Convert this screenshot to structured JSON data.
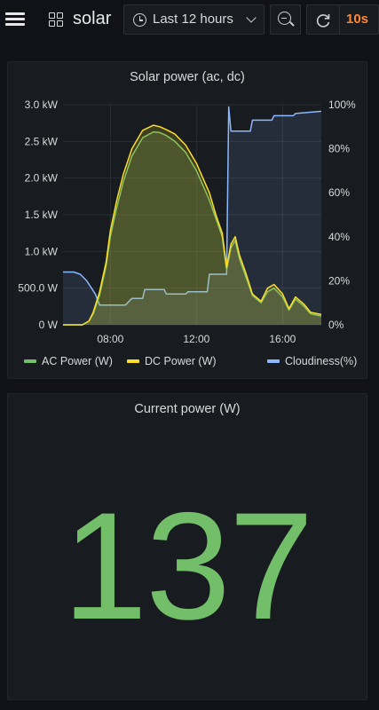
{
  "header": {
    "dashboard_title": "solar",
    "time_range_label": "Last 12 hours",
    "refresh_interval": "10s"
  },
  "icons": {
    "menu": "hamburger-icon",
    "dashboard": "grid-icon",
    "time": "clock-icon",
    "time_dropdown": "chevron-down-icon",
    "zoom_out": "zoom-out-icon",
    "refresh": "refresh-icon"
  },
  "colors": {
    "background": "#111217",
    "panel": "#181b1f",
    "ac_power": "#73bf69",
    "dc_power": "#fade2a",
    "cloudiness": "#8ab8ff",
    "refresh_interval": "#ff8833",
    "stat_value": "#73bf69"
  },
  "panels": {
    "chart": {
      "title": "Solar power (ac, dc)"
    },
    "stat": {
      "title": "Current power (W)",
      "value": "137"
    }
  },
  "chart_data": {
    "type": "line",
    "title": "Solar power (ac, dc)",
    "x_tick_labels": [
      "08:00",
      "12:00",
      "16:00"
    ],
    "x_ticks_hours": [
      8,
      12,
      16
    ],
    "xlim_hours": [
      5.8,
      17.8
    ],
    "y_left": {
      "tick_labels": [
        "0 W",
        "500.0 W",
        "1.0 kW",
        "1.5 kW",
        "2.0 kW",
        "2.5 kW",
        "3.0 kW"
      ],
      "ylim_kw": [
        0,
        3.0
      ]
    },
    "y_right": {
      "tick_labels": [
        "0%",
        "20%",
        "40%",
        "60%",
        "80%",
        "100%"
      ],
      "ylim_percent": [
        0,
        100
      ]
    },
    "grid": true,
    "legend": "bottom",
    "series": [
      {
        "name": "AC Power (W)",
        "axis": "left",
        "unit": "kW",
        "color": "#73bf69",
        "fill": true,
        "x": [
          5.8,
          6.7,
          7.0,
          7.2,
          7.5,
          7.8,
          8.0,
          8.3,
          8.6,
          9.0,
          9.5,
          10.0,
          10.3,
          10.6,
          11.0,
          11.5,
          12.0,
          12.3,
          12.6,
          12.9,
          13.2,
          13.4,
          13.6,
          13.8,
          14.0,
          14.3,
          14.6,
          15.0,
          15.3,
          15.6,
          16.0,
          16.3,
          16.6,
          17.0,
          17.3,
          17.8
        ],
        "values": [
          0,
          0,
          0.05,
          0.15,
          0.4,
          0.8,
          1.2,
          1.6,
          1.95,
          2.3,
          2.55,
          2.63,
          2.62,
          2.58,
          2.5,
          2.35,
          2.1,
          1.9,
          1.7,
          1.45,
          1.2,
          0.75,
          1.05,
          1.15,
          0.9,
          0.65,
          0.4,
          0.3,
          0.45,
          0.5,
          0.38,
          0.2,
          0.35,
          0.25,
          0.15,
          0.12
        ]
      },
      {
        "name": "DC Power (W)",
        "axis": "left",
        "unit": "kW",
        "color": "#fade2a",
        "fill": true,
        "x": [
          5.8,
          6.7,
          7.0,
          7.2,
          7.5,
          7.8,
          8.0,
          8.3,
          8.6,
          9.0,
          9.5,
          10.0,
          10.3,
          10.6,
          11.0,
          11.5,
          12.0,
          12.3,
          12.6,
          12.9,
          13.2,
          13.4,
          13.6,
          13.8,
          14.0,
          14.3,
          14.6,
          15.0,
          15.3,
          15.6,
          16.0,
          16.3,
          16.6,
          17.0,
          17.3,
          17.8
        ],
        "values": [
          0,
          0,
          0.05,
          0.17,
          0.45,
          0.85,
          1.28,
          1.7,
          2.05,
          2.4,
          2.65,
          2.72,
          2.7,
          2.66,
          2.6,
          2.45,
          2.2,
          2.0,
          1.8,
          1.5,
          1.25,
          0.78,
          1.1,
          1.2,
          0.95,
          0.7,
          0.42,
          0.32,
          0.5,
          0.55,
          0.42,
          0.22,
          0.38,
          0.28,
          0.17,
          0.14
        ]
      },
      {
        "name": "Cloudiness(%)",
        "axis": "right",
        "unit": "%",
        "color": "#8ab8ff",
        "fill": true,
        "x": [
          5.8,
          6.3,
          6.6,
          6.9,
          7.3,
          7.5,
          8.0,
          8.7,
          9.0,
          9.5,
          9.6,
          10.5,
          10.6,
          11.5,
          11.6,
          12.5,
          12.6,
          13.1,
          13.4,
          13.5,
          13.6,
          13.7,
          14.0,
          14.5,
          14.6,
          15.5,
          15.6,
          16.5,
          16.6,
          17.8
        ],
        "values": [
          24,
          24,
          23,
          20,
          14,
          9,
          9,
          9,
          12,
          12,
          16,
          16,
          14,
          14,
          15,
          15,
          23,
          23,
          23,
          99,
          88,
          88,
          88,
          88,
          93,
          93,
          95,
          95,
          96,
          97
        ]
      }
    ]
  }
}
